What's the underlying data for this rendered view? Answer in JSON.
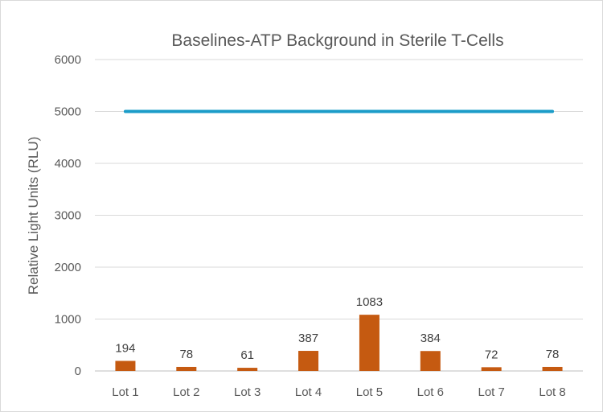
{
  "chart_data": {
    "type": "bar",
    "title": "Baselines-ATP Background in Sterile T-Cells",
    "xlabel": "",
    "ylabel": "Relative Light Units (RLU)",
    "ylim": [
      0,
      6000
    ],
    "yticks": [
      0,
      1000,
      2000,
      3000,
      4000,
      5000,
      6000
    ],
    "categories": [
      "Lot 1",
      "Lot 2",
      "Lot 3",
      "Lot 4",
      "Lot 5",
      "Lot 6",
      "Lot 7",
      "Lot 8"
    ],
    "series": [
      {
        "type": "bar",
        "values": [
          194,
          78,
          61,
          387,
          1083,
          384,
          72,
          78
        ],
        "color": "#c55a11",
        "data_labels": true
      },
      {
        "type": "line",
        "values": [
          5000,
          5000,
          5000,
          5000,
          5000,
          5000,
          5000,
          5000
        ],
        "color": "#1b9cc8",
        "data_labels": false
      }
    ],
    "grid": true,
    "legend": "none"
  }
}
